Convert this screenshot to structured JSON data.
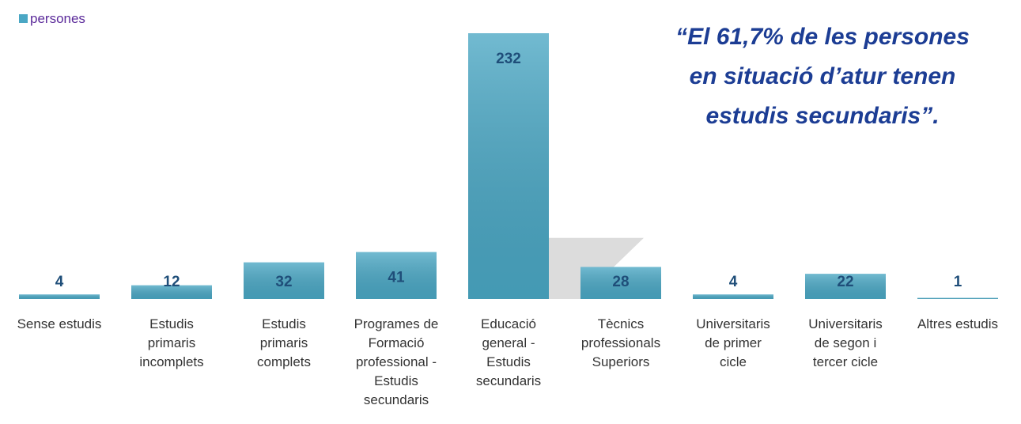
{
  "chart_data": {
    "type": "bar",
    "legend": "persones",
    "annotation": [
      "“El 61,7% de les persones",
      "en situació d’atur tenen",
      "estudis secundaris”."
    ],
    "categories": [
      "Sense estudis",
      "Estudis\nprimaris\nincomplets",
      "Estudis\nprimaris\ncomplets",
      "Programes de\nFormació\nprofessional -\nEstudis\nsecundaris",
      "Educació\ngeneral -\nEstudis\nsecundaris",
      "Tècnics\nprofessionals\nSuperiors",
      "Universitaris\nde primer\ncicle",
      "Universitaris\nde segon i\ntercer cicle",
      "Altres estudis"
    ],
    "values": [
      4,
      12,
      32,
      41,
      232,
      28,
      4,
      22,
      1
    ],
    "color": "#4aa7c4",
    "ylim": [
      0,
      232
    ]
  }
}
